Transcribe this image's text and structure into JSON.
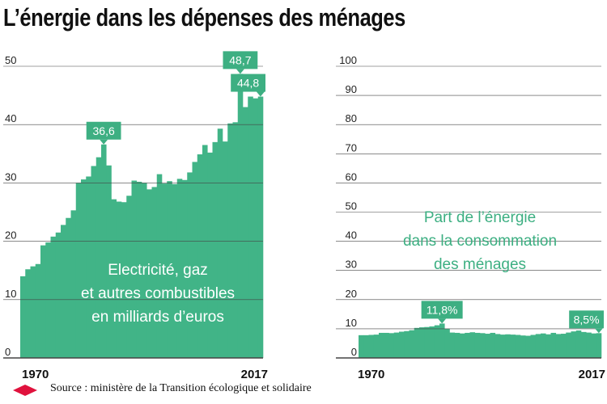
{
  "title": "L’énergie dans les dépenses des ménages",
  "source": "Source : ministère de la Transition écologique et solidaire",
  "colors": {
    "bar": "#41b487",
    "callout": "#3daf82",
    "grid": "#444444",
    "diamond": "#e0123d",
    "text_green": "#3daf82"
  },
  "chart_data": [
    {
      "type": "bar",
      "id": "left",
      "categories": [
        1970,
        1971,
        1972,
        1973,
        1974,
        1975,
        1976,
        1977,
        1978,
        1979,
        1980,
        1981,
        1982,
        1983,
        1984,
        1985,
        1986,
        1987,
        1988,
        1989,
        1990,
        1991,
        1992,
        1993,
        1994,
        1995,
        1996,
        1997,
        1998,
        1999,
        2000,
        2001,
        2002,
        2003,
        2004,
        2005,
        2006,
        2007,
        2008,
        2009,
        2010,
        2011,
        2012,
        2013,
        2014,
        2015,
        2016,
        2017
      ],
      "values": [
        14.0,
        15.2,
        15.7,
        16.1,
        19.3,
        19.8,
        20.8,
        21.5,
        22.8,
        24.0,
        25.3,
        30.0,
        30.6,
        31.1,
        32.9,
        34.4,
        36.6,
        33.0,
        27.2,
        26.8,
        26.7,
        27.8,
        30.4,
        30.2,
        30.0,
        28.9,
        29.3,
        31.5,
        29.9,
        30.3,
        29.8,
        30.7,
        30.5,
        31.8,
        33.6,
        34.9,
        36.5,
        35.2,
        37.0,
        39.3,
        37.1,
        40.2,
        40.4,
        48.7,
        43.0,
        44.8,
        44.5,
        44.8
      ],
      "ylim": [
        0,
        50
      ],
      "yticks": [
        "0",
        "10",
        "20",
        "30",
        "40",
        "50"
      ],
      "xlabels": [
        "1970",
        "2017"
      ],
      "annotations": [
        {
          "label": "36,6",
          "year": 1986,
          "value": 36.6
        },
        {
          "label": "48,7",
          "year": 2013,
          "value": 48.7
        },
        {
          "label": "44,8",
          "year": 2017,
          "value": 44.8
        }
      ],
      "series_label": [
        "Electricité, gaz",
        "et autres combustibles",
        "en milliards d’euros"
      ]
    },
    {
      "type": "bar",
      "id": "right",
      "categories": [
        1970,
        1971,
        1972,
        1973,
        1974,
        1975,
        1976,
        1977,
        1978,
        1979,
        1980,
        1981,
        1982,
        1983,
        1984,
        1985,
        1986,
        1987,
        1988,
        1989,
        1990,
        1991,
        1992,
        1993,
        1994,
        1995,
        1996,
        1997,
        1998,
        1999,
        2000,
        2001,
        2002,
        2003,
        2004,
        2005,
        2006,
        2007,
        2008,
        2009,
        2010,
        2011,
        2012,
        2013,
        2014,
        2015,
        2016,
        2017
      ],
      "values": [
        7.8,
        7.8,
        7.9,
        8.0,
        8.6,
        8.6,
        8.5,
        8.7,
        9.0,
        9.2,
        9.5,
        10.3,
        10.5,
        10.6,
        10.8,
        11.2,
        11.8,
        10.0,
        8.7,
        8.6,
        8.4,
        8.6,
        8.8,
        8.6,
        8.5,
        8.3,
        8.6,
        8.2,
        8.0,
        8.1,
        8.0,
        7.9,
        7.7,
        7.6,
        7.9,
        8.2,
        8.4,
        8.1,
        8.6,
        8.2,
        8.3,
        8.7,
        9.1,
        9.4,
        8.9,
        8.7,
        8.4,
        8.5
      ],
      "ylim": [
        0,
        100
      ],
      "yticks": [
        "0",
        "10",
        "20",
        "30",
        "40",
        "50",
        "60",
        "70",
        "80",
        "90",
        "100"
      ],
      "xlabels": [
        "1970",
        "2017"
      ],
      "annotations": [
        {
          "label": "11,8%",
          "year": 1986,
          "value": 11.8
        },
        {
          "label": "8,5%",
          "year": 2017,
          "value": 8.5
        }
      ],
      "series_label": [
        "Part de l’énergie",
        "dans la consommation",
        "des ménages"
      ]
    }
  ]
}
